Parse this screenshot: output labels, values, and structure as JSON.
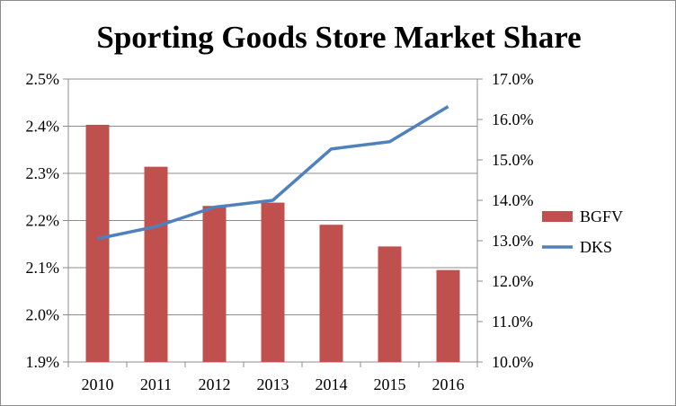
{
  "chart_data": {
    "type": "bar",
    "title": "Sporting Goods Store Market Share",
    "categories": [
      "2010",
      "2011",
      "2012",
      "2013",
      "2014",
      "2015",
      "2016"
    ],
    "series": [
      {
        "name": "BGFV",
        "type": "bar",
        "axis": "left",
        "color": "#c0504d",
        "values": [
          2.403,
          2.314,
          2.231,
          2.238,
          2.191,
          2.145,
          2.095
        ]
      },
      {
        "name": "DKS",
        "type": "line",
        "axis": "right",
        "color": "#4f81bd",
        "values": [
          13.05,
          13.35,
          13.83,
          14.0,
          15.27,
          15.45,
          16.32
        ]
      }
    ],
    "y_left": {
      "ylim": [
        1.9,
        2.5
      ],
      "ticks": [
        "1.9%",
        "2.0%",
        "2.1%",
        "2.2%",
        "2.3%",
        "2.4%",
        "2.5%"
      ]
    },
    "y_right": {
      "ylim": [
        10.0,
        17.0
      ],
      "ticks": [
        "10.0%",
        "11.0%",
        "12.0%",
        "13.0%",
        "14.0%",
        "15.0%",
        "16.0%",
        "17.0%"
      ]
    },
    "xlabel": "",
    "ylabel": "",
    "grid": true,
    "legend_position": "right"
  }
}
